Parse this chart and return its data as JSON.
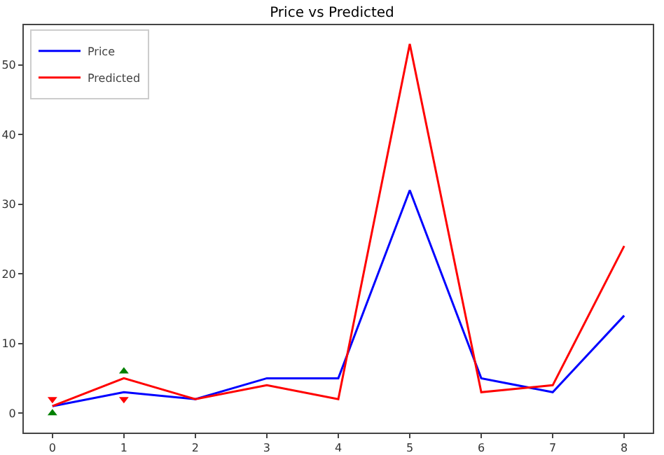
{
  "chart_data": {
    "type": "line",
    "title": "Price vs Predicted",
    "x": [
      0,
      1,
      2,
      3,
      4,
      5,
      6,
      7,
      8
    ],
    "series": [
      {
        "name": "Price",
        "color": "#0000ff",
        "values": [
          1,
          3,
          2,
          5,
          5,
          32,
          5,
          3,
          14
        ]
      },
      {
        "name": "Predicted",
        "color": "#ff0000",
        "values": [
          1,
          5,
          2,
          4,
          2,
          53,
          3,
          4,
          24
        ]
      },
      {
        "type": "scatter",
        "color": "#008000",
        "marker": "triangle",
        "values": [
          0,
          6,
          null,
          null,
          null,
          null,
          null,
          null,
          null
        ]
      },
      {
        "type": "scatter",
        "color": "#ff0000",
        "marker": "triangle-down",
        "values": [
          2,
          2,
          null,
          null,
          null,
          null,
          null,
          null,
          null
        ]
      }
    ],
    "xlim": [
      -0.4,
      8.4
    ],
    "xticks": [
      0,
      1,
      2,
      3,
      4,
      5,
      6,
      7,
      8
    ],
    "ylim": [
      -2.8,
      55.7
    ],
    "yticks": [
      0,
      10,
      20,
      30,
      40,
      50
    ],
    "grid": false,
    "legend": "top left"
  }
}
